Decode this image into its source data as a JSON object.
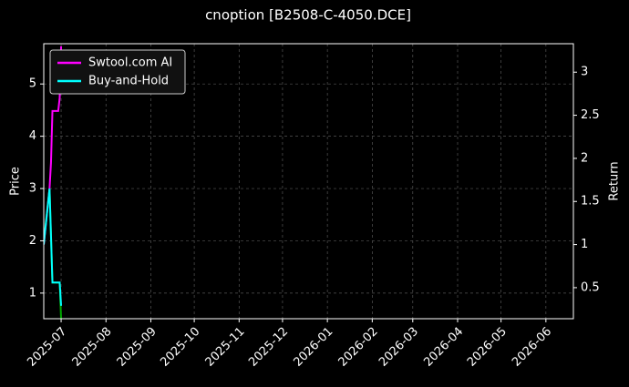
{
  "chart_data": {
    "type": "line",
    "title": "cnoption [B2508-C-4050.DCE]",
    "y_label": "Price",
    "y2_label": "Return",
    "x": [
      "2025-06-19",
      "2025-06-23",
      "2025-06-24",
      "2025-06-25",
      "2025-06-27",
      "2025-06-29",
      "2025-06-30",
      "2025-07-01"
    ],
    "series": [
      {
        "color": "#00aa00",
        "axis": "y",
        "values": [
          2.0,
          3.0,
          2.1,
          1.2,
          1.2,
          1.2,
          1.2,
          0.5
        ]
      },
      {
        "name": "Swtool.com AI",
        "color": "#ff00ff",
        "axis": "y2",
        "values": [
          1.0,
          1.65,
          1.95,
          2.55,
          2.55,
          2.55,
          2.7,
          3.3
        ]
      },
      {
        "name": "Buy-and-Hold",
        "color": "#00ffff",
        "axis": "y2",
        "values": [
          1.0,
          1.65,
          1.1,
          0.56,
          0.56,
          0.56,
          0.56,
          0.29
        ]
      }
    ],
    "xlim": [
      "2025-06-19",
      "2026-06-20"
    ],
    "xticks": [
      "2025-07",
      "2025-08",
      "2025-09",
      "2025-10",
      "2025-11",
      "2025-12",
      "2026-01",
      "2026-02",
      "2026-03",
      "2026-04",
      "2026-05",
      "2026-06"
    ],
    "ylim": [
      0.51,
      5.77
    ],
    "yticks": [
      1,
      2,
      3,
      4,
      5
    ],
    "y2lim": [
      0.14,
      3.33
    ],
    "y2ticks": [
      0.5,
      1.0,
      1.5,
      2.0,
      2.5,
      3.0
    ],
    "grid": true,
    "legend": "upper-left"
  }
}
